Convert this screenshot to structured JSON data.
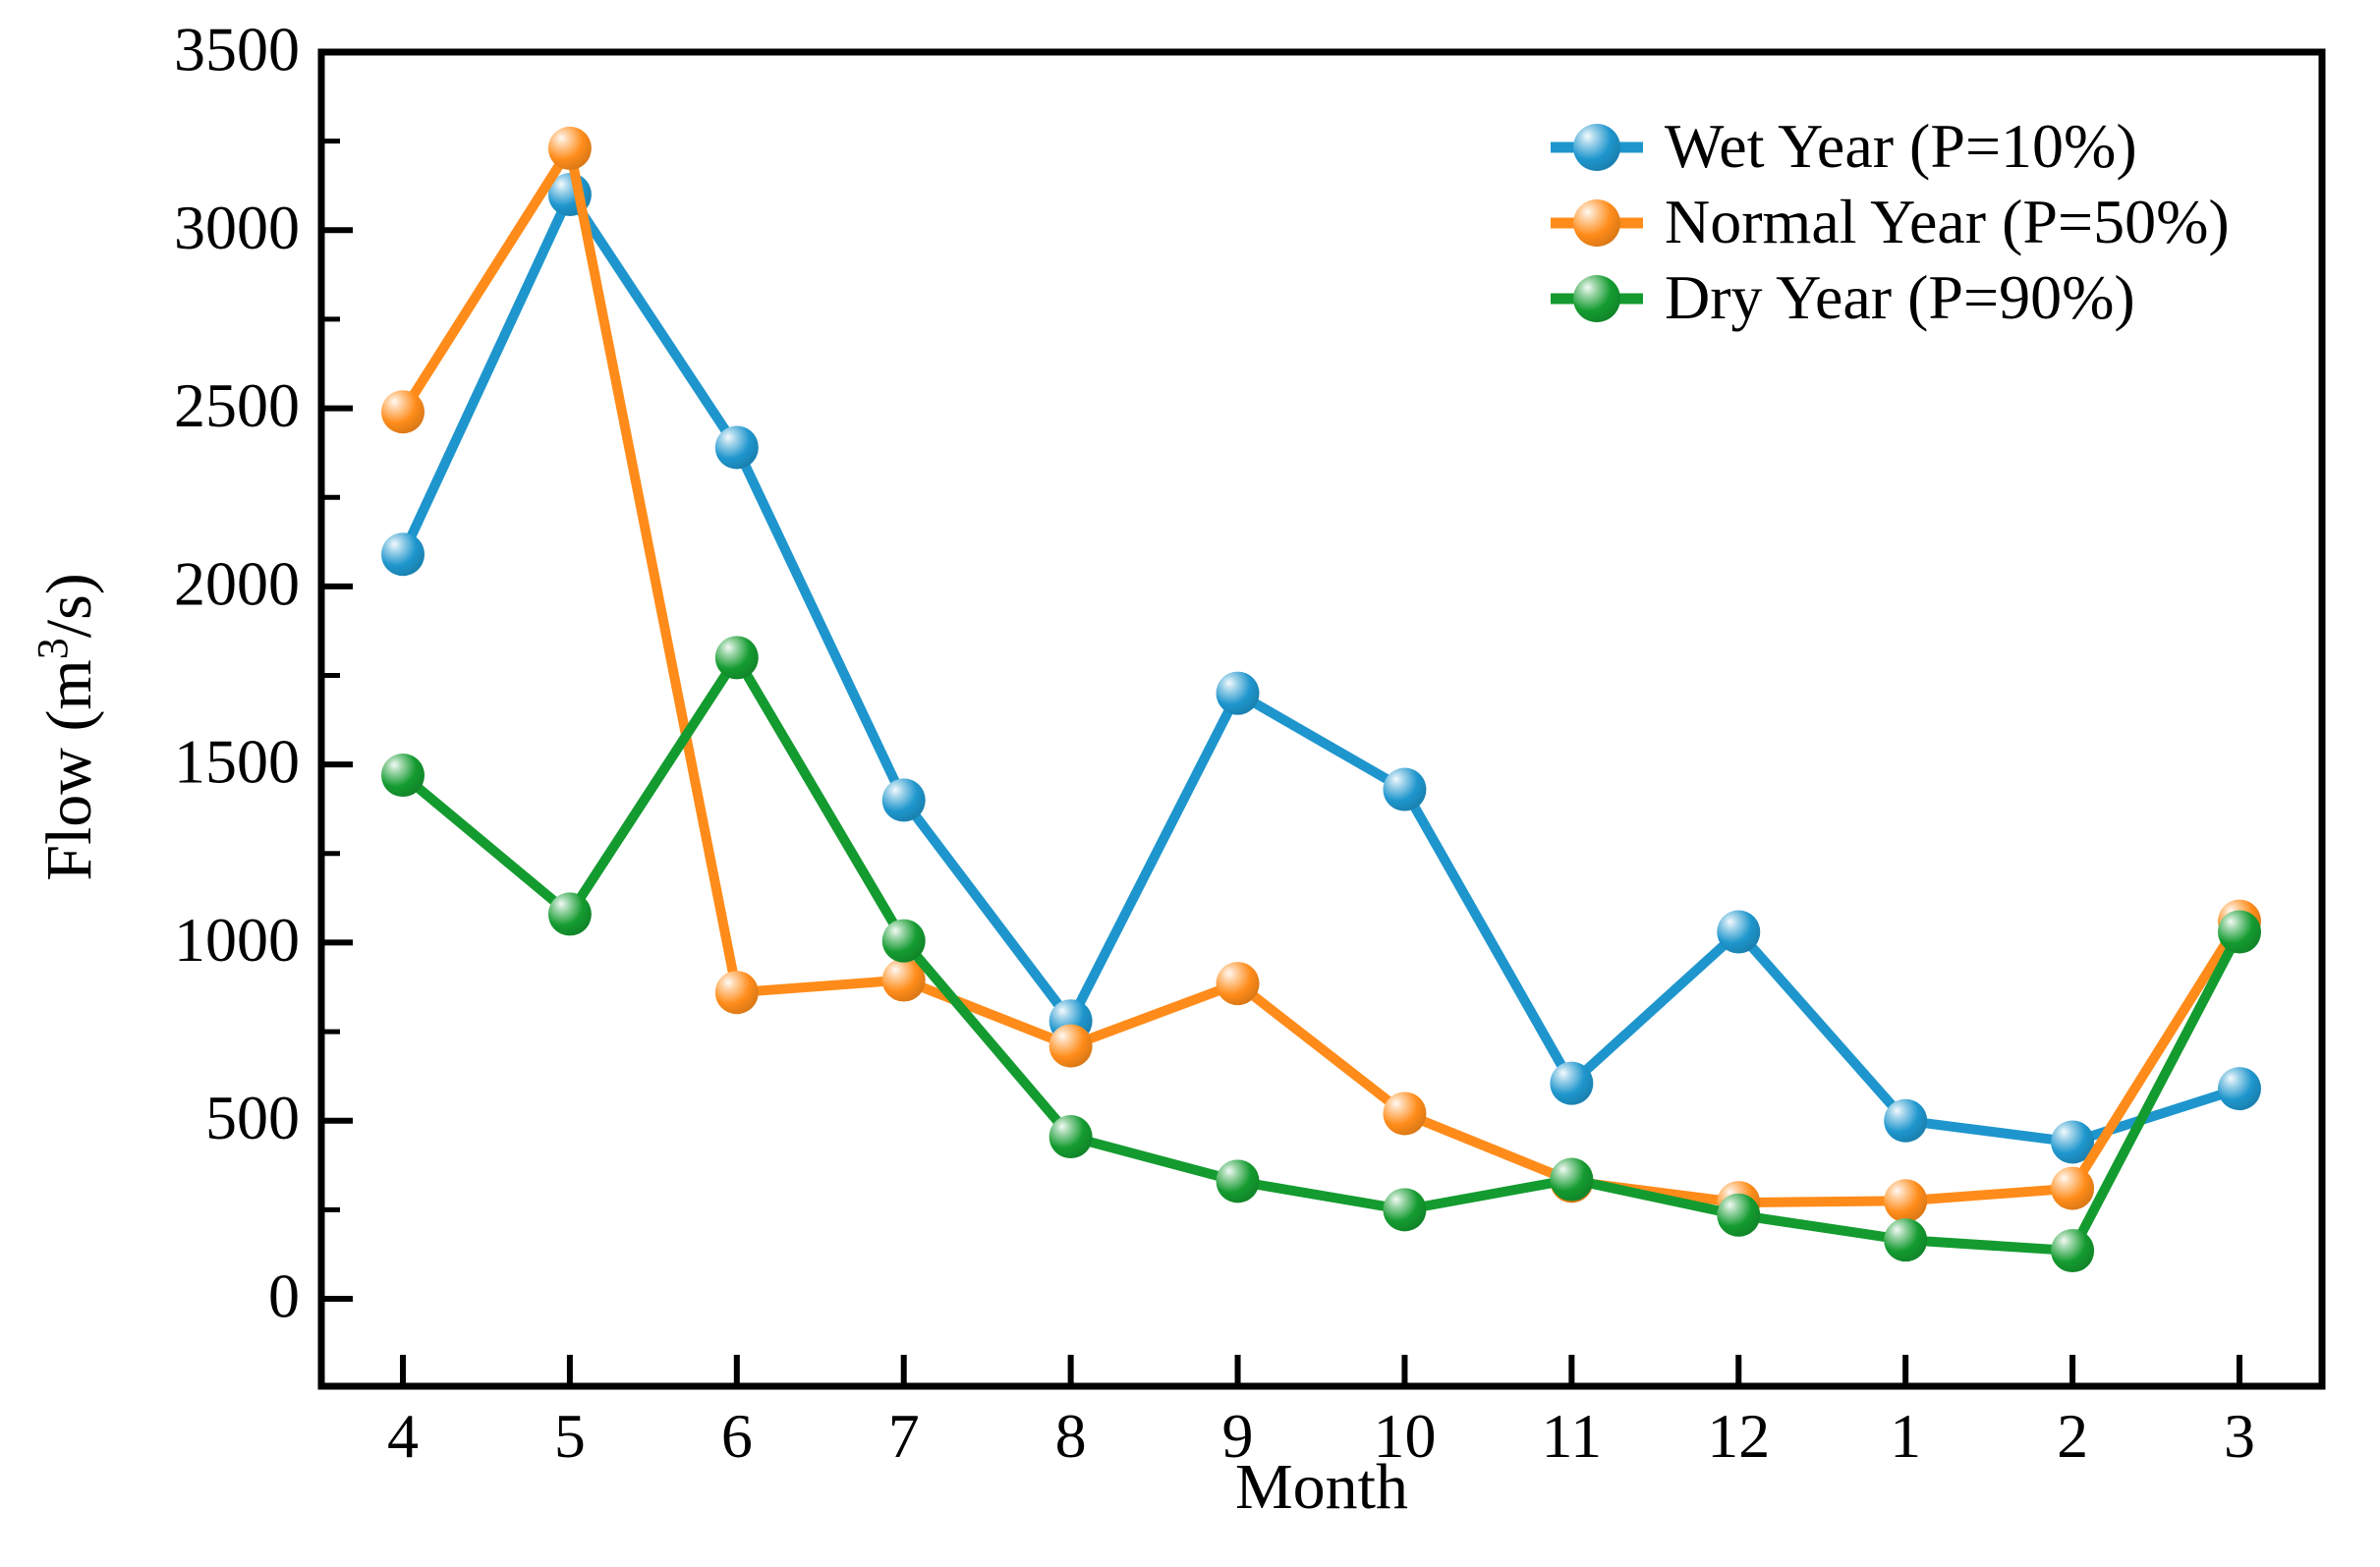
{
  "chart_data": {
    "type": "line",
    "title": "",
    "xlabel": "Month",
    "ylabel": "Flow (m³/s)",
    "ylabel_parts": {
      "prefix": "Flow (m",
      "sup": "3",
      "suffix": "/s)"
    },
    "categories": [
      "4",
      "5",
      "6",
      "7",
      "8",
      "9",
      "10",
      "11",
      "12",
      "1",
      "2",
      "3"
    ],
    "y_ticks": [
      0,
      500,
      1000,
      1500,
      2000,
      2500,
      3000,
      3500
    ],
    "y_minor_step": 250,
    "ylim": [
      -245,
      3500
    ],
    "grid": false,
    "legend_position": "top-right",
    "series": [
      {
        "name": "Wet Year  (P=10%)",
        "color": "#1e96cd",
        "values": [
          2090,
          3100,
          2390,
          1400,
          780,
          1700,
          1430,
          605,
          1030,
          500,
          440,
          590
        ]
      },
      {
        "name": "Normal Year  (P=50%)",
        "color": "#ff8c1a",
        "values": [
          2490,
          3230,
          860,
          895,
          710,
          885,
          520,
          330,
          270,
          275,
          310,
          1060
        ]
      },
      {
        "name": "Dry Year  (P=90%)",
        "color": "#149b30",
        "values": [
          1470,
          1080,
          1800,
          1005,
          455,
          330,
          250,
          335,
          235,
          165,
          135,
          1030
        ]
      }
    ]
  }
}
